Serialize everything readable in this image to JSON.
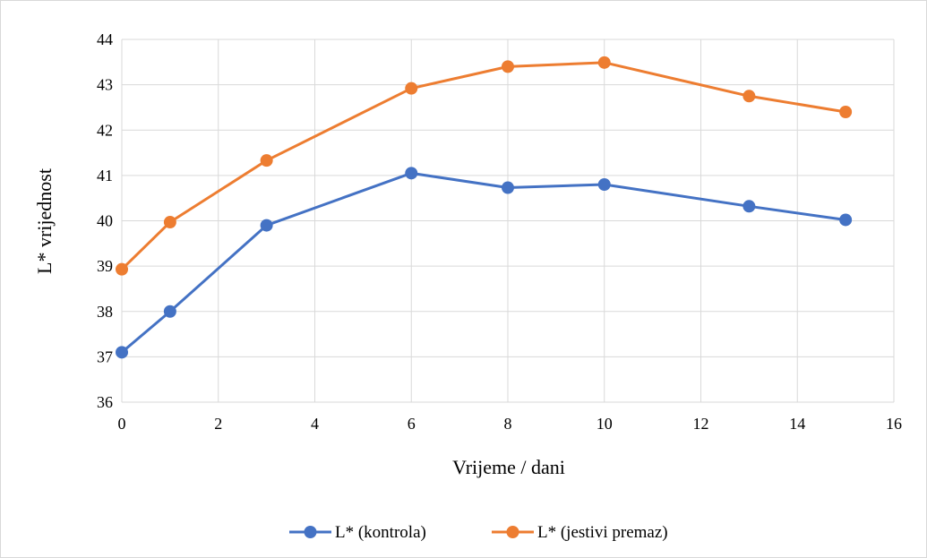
{
  "chart_data": {
    "type": "line",
    "title": "",
    "xlabel": "Vrijeme / dani",
    "ylabel": "L* vrijednost",
    "xlim": [
      0,
      16
    ],
    "ylim": [
      36,
      44
    ],
    "xticks": [
      "0",
      "2",
      "4",
      "6",
      "8",
      "10",
      "12",
      "14",
      "16"
    ],
    "yticks": [
      "36",
      "37",
      "38",
      "39",
      "40",
      "41",
      "42",
      "43",
      "44"
    ],
    "grid": true,
    "legend_position": "bottom",
    "x": [
      0,
      1,
      3,
      6,
      8,
      10,
      13,
      15
    ],
    "series": [
      {
        "name": "L* (kontrola)",
        "color": "#4472c4",
        "values": [
          37.1,
          38.0,
          39.9,
          41.05,
          40.73,
          40.8,
          40.32,
          40.02
        ]
      },
      {
        "name": "L* (jestivi premaz)",
        "color": "#ed7d31",
        "values": [
          38.93,
          39.97,
          41.33,
          42.92,
          43.4,
          43.49,
          42.75,
          42.4
        ]
      }
    ]
  }
}
